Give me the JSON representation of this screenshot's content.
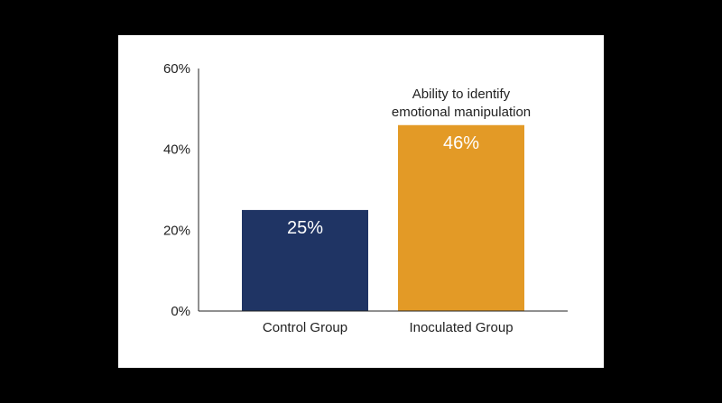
{
  "chart_data": {
    "type": "bar",
    "categories": [
      "Control Group",
      "Inoculated Group"
    ],
    "values": [
      25,
      46
    ],
    "value_labels": [
      "25%",
      "46%"
    ],
    "bar_colors": [
      "#1f3464",
      "#e39a26"
    ],
    "title": "",
    "xlabel": "",
    "ylabel": "",
    "ylim": [
      0,
      60
    ],
    "y_ticks": [
      0,
      20,
      40,
      60
    ],
    "y_tick_labels": [
      "0%",
      "20%",
      "40%",
      "60%"
    ],
    "annotation": {
      "lines": [
        "Ability to identify",
        "emotional manipulation"
      ],
      "attached_to": "Inoculated Group"
    },
    "grid": false,
    "legend": "none"
  },
  "colors": {
    "background": "#000000",
    "card": "#ffffff",
    "axis": "#222222"
  }
}
